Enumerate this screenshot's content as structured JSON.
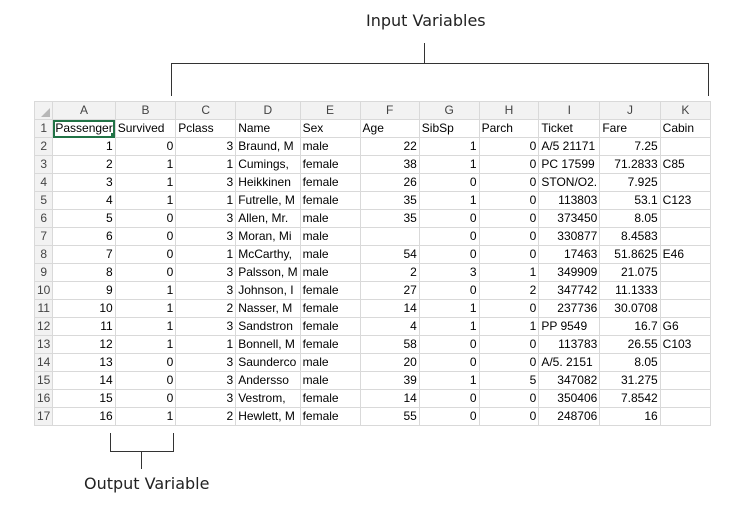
{
  "annotations": {
    "input_label": "Input Variables",
    "output_label": "Output Variable"
  },
  "sheet": {
    "columns": [
      "A",
      "B",
      "C",
      "D",
      "E",
      "F",
      "G",
      "H",
      "I",
      "J",
      "K"
    ],
    "headers": [
      "Passenger",
      "Survived",
      "Pclass",
      "Name",
      "Sex",
      "Age",
      "SibSp",
      "Parch",
      "Ticket",
      "Fare",
      "Cabin"
    ],
    "rows": [
      {
        "n": "2",
        "c": [
          "1",
          "0",
          "3",
          "Braund, M",
          "male",
          "22",
          "1",
          "0",
          "A/5 21171",
          "7.25",
          ""
        ]
      },
      {
        "n": "3",
        "c": [
          "2",
          "1",
          "1",
          "Cumings,",
          "female",
          "38",
          "1",
          "0",
          "PC 17599",
          "71.2833",
          "C85"
        ]
      },
      {
        "n": "4",
        "c": [
          "3",
          "1",
          "3",
          "Heikkinen",
          "female",
          "26",
          "0",
          "0",
          "STON/O2.",
          "7.925",
          ""
        ]
      },
      {
        "n": "5",
        "c": [
          "4",
          "1",
          "1",
          "Futrelle, M",
          "female",
          "35",
          "1",
          "0",
          "113803",
          "53.1",
          "C123"
        ]
      },
      {
        "n": "6",
        "c": [
          "5",
          "0",
          "3",
          "Allen, Mr.",
          "male",
          "35",
          "0",
          "0",
          "373450",
          "8.05",
          ""
        ]
      },
      {
        "n": "7",
        "c": [
          "6",
          "0",
          "3",
          "Moran, Mi",
          "male",
          "",
          "0",
          "0",
          "330877",
          "8.4583",
          ""
        ]
      },
      {
        "n": "8",
        "c": [
          "7",
          "0",
          "1",
          "McCarthy,",
          "male",
          "54",
          "0",
          "0",
          "17463",
          "51.8625",
          "E46"
        ]
      },
      {
        "n": "9",
        "c": [
          "8",
          "0",
          "3",
          "Palsson, M",
          "male",
          "2",
          "3",
          "1",
          "349909",
          "21.075",
          ""
        ]
      },
      {
        "n": "10",
        "c": [
          "9",
          "1",
          "3",
          "Johnson, I",
          "female",
          "27",
          "0",
          "2",
          "347742",
          "11.1333",
          ""
        ]
      },
      {
        "n": "11",
        "c": [
          "10",
          "1",
          "2",
          "Nasser, M",
          "female",
          "14",
          "1",
          "0",
          "237736",
          "30.0708",
          ""
        ]
      },
      {
        "n": "12",
        "c": [
          "11",
          "1",
          "3",
          "Sandstron",
          "female",
          "4",
          "1",
          "1",
          "PP 9549",
          "16.7",
          "G6"
        ]
      },
      {
        "n": "13",
        "c": [
          "12",
          "1",
          "1",
          "Bonnell, M",
          "female",
          "58",
          "0",
          "0",
          "113783",
          "26.55",
          "C103"
        ]
      },
      {
        "n": "14",
        "c": [
          "13",
          "0",
          "3",
          "Saunderco",
          "male",
          "20",
          "0",
          "0",
          "A/5. 2151",
          "8.05",
          ""
        ]
      },
      {
        "n": "15",
        "c": [
          "14",
          "0",
          "3",
          "Andersso",
          "male",
          "39",
          "1",
          "5",
          "347082",
          "31.275",
          ""
        ]
      },
      {
        "n": "16",
        "c": [
          "15",
          "0",
          "3",
          "Vestrom,",
          "female",
          "14",
          "0",
          "0",
          "350406",
          "7.8542",
          ""
        ]
      },
      {
        "n": "17",
        "c": [
          "16",
          "1",
          "2",
          "Hewlett, M",
          "female",
          "55",
          "0",
          "0",
          "248706",
          "16",
          ""
        ]
      }
    ]
  }
}
